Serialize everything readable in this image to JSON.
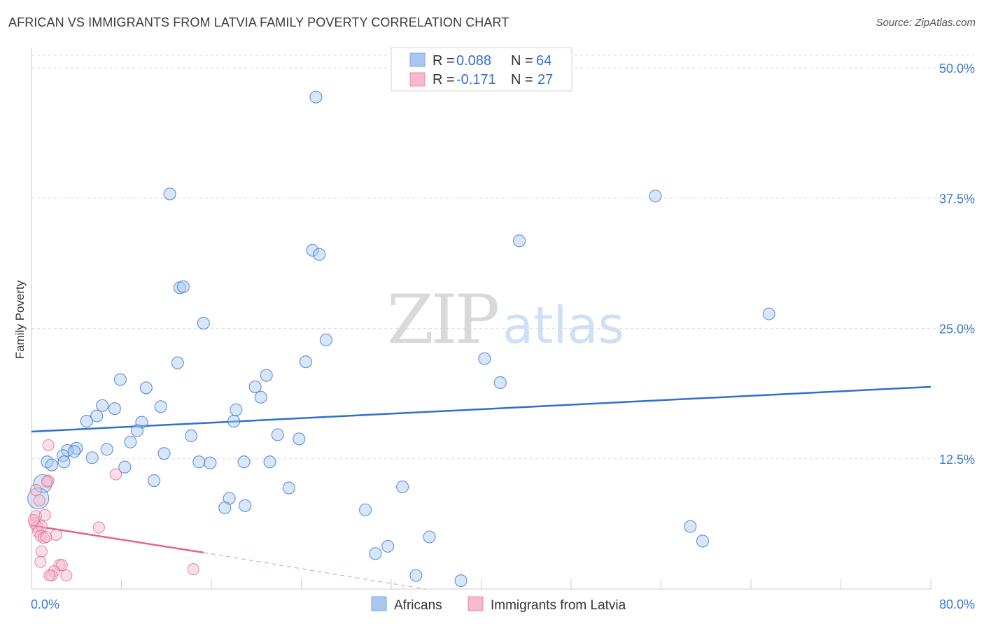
{
  "title": "AFRICAN VS IMMIGRANTS FROM LATVIA FAMILY POVERTY CORRELATION CHART",
  "source": "Source: ZipAtlas.com",
  "watermark": {
    "part1": "ZIP",
    "part2": "atlas"
  },
  "colors": {
    "blue": "#2f6fd0",
    "blue_fill": "#a9c8f0",
    "pink": "#e0658f",
    "pink_fill": "#f7b9cc",
    "grid": "#dddddd",
    "tick_text": "#3b7ad1"
  },
  "legend": {
    "rows": [
      {
        "r_label": "R =",
        "r_value": "0.088",
        "n_label": "N =",
        "n_value": "64"
      },
      {
        "r_label": "R =",
        "r_value": "-0.171",
        "n_label": "N =",
        "n_value": "27"
      }
    ]
  },
  "chart_data": {
    "type": "scatter",
    "title": "AFRICAN VS IMMIGRANTS FROM LATVIA FAMILY POVERTY CORRELATION CHART",
    "xlabel": "",
    "ylabel": "Family Poverty",
    "xlim": [
      0,
      80
    ],
    "ylim": [
      0,
      52
    ],
    "x_tick_labels": [
      "0.0%",
      "80.0%"
    ],
    "y_ticks": [
      12.5,
      25.0,
      37.5,
      50.0
    ],
    "y_tick_labels": [
      "12.5%",
      "25.0%",
      "37.5%",
      "50.0%"
    ],
    "legend_position": "top-center",
    "series": [
      {
        "name": "Africans",
        "color": "#2f6fd0",
        "fill": "#a9c8f0",
        "trend": {
          "x": [
            0,
            80
          ],
          "y": [
            15.1,
            19.4
          ],
          "style": "solid"
        },
        "points": [
          [
            25.3,
            47.2
          ],
          [
            12.3,
            37.9
          ],
          [
            55.5,
            37.7
          ],
          [
            43.4,
            33.4
          ],
          [
            25.0,
            32.5
          ],
          [
            25.6,
            32.1
          ],
          [
            13.2,
            28.9
          ],
          [
            13.5,
            29.0
          ],
          [
            65.6,
            26.4
          ],
          [
            15.3,
            25.5
          ],
          [
            26.2,
            23.9
          ],
          [
            40.3,
            22.1
          ],
          [
            24.4,
            21.8
          ],
          [
            13.0,
            21.7
          ],
          [
            20.9,
            20.5
          ],
          [
            41.7,
            19.8
          ],
          [
            7.9,
            20.1
          ],
          [
            10.2,
            19.3
          ],
          [
            19.9,
            19.4
          ],
          [
            20.4,
            18.4
          ],
          [
            6.3,
            17.6
          ],
          [
            7.4,
            17.3
          ],
          [
            11.5,
            17.5
          ],
          [
            18.2,
            17.2
          ],
          [
            5.8,
            16.6
          ],
          [
            4.9,
            16.1
          ],
          [
            9.8,
            16.0
          ],
          [
            18.0,
            16.1
          ],
          [
            9.4,
            15.2
          ],
          [
            14.2,
            14.7
          ],
          [
            21.9,
            14.8
          ],
          [
            23.8,
            14.4
          ],
          [
            8.8,
            14.1
          ],
          [
            4.0,
            13.5
          ],
          [
            3.2,
            13.3
          ],
          [
            3.8,
            13.2
          ],
          [
            6.7,
            13.4
          ],
          [
            11.8,
            13.0
          ],
          [
            2.8,
            12.8
          ],
          [
            5.4,
            12.6
          ],
          [
            1.4,
            12.2
          ],
          [
            2.9,
            12.2
          ],
          [
            1.8,
            11.9
          ],
          [
            14.9,
            12.2
          ],
          [
            15.9,
            12.1
          ],
          [
            18.9,
            12.2
          ],
          [
            21.2,
            12.2
          ],
          [
            8.3,
            11.7
          ],
          [
            1.0,
            10.1
          ],
          [
            10.9,
            10.4
          ],
          [
            22.9,
            9.7
          ],
          [
            33.0,
            9.8
          ],
          [
            0.6,
            8.7
          ],
          [
            17.6,
            8.7
          ],
          [
            17.2,
            7.8
          ],
          [
            19.0,
            8.0
          ],
          [
            29.7,
            7.6
          ],
          [
            58.6,
            6.0
          ],
          [
            35.4,
            5.0
          ],
          [
            59.7,
            4.6
          ],
          [
            31.7,
            4.1
          ],
          [
            30.6,
            3.4
          ],
          [
            34.2,
            1.3
          ],
          [
            38.2,
            0.8
          ]
        ],
        "point_sizes_note": "most points regular size; two points near the origin drawn larger"
      },
      {
        "name": "Immigrants from Latvia",
        "color": "#e0658f",
        "fill": "#f7b9cc",
        "trend": {
          "x": [
            0,
            15.3
          ],
          "y": [
            6.1,
            3.5
          ],
          "style": "solid",
          "extension": {
            "x": [
              15.3,
              35.0
            ],
            "y": [
              3.5,
              0.0
            ],
            "style": "dashed"
          }
        },
        "points": [
          [
            1.5,
            13.8
          ],
          [
            7.5,
            11.0
          ],
          [
            1.5,
            10.4
          ],
          [
            1.4,
            10.3
          ],
          [
            0.4,
            9.5
          ],
          [
            0.7,
            8.5
          ],
          [
            0.4,
            7.0
          ],
          [
            1.2,
            7.1
          ],
          [
            0.3,
            6.3
          ],
          [
            0.5,
            6.0
          ],
          [
            0.9,
            6.0
          ],
          [
            6.0,
            5.9
          ],
          [
            0.6,
            5.5
          ],
          [
            2.2,
            5.2
          ],
          [
            0.8,
            5.1
          ],
          [
            1.1,
            4.9
          ],
          [
            1.3,
            5.0
          ],
          [
            0.9,
            3.6
          ],
          [
            0.8,
            2.6
          ],
          [
            2.5,
            2.3
          ],
          [
            2.7,
            2.3
          ],
          [
            2.0,
            1.7
          ],
          [
            1.8,
            1.3
          ],
          [
            1.6,
            1.3
          ],
          [
            3.1,
            1.3
          ],
          [
            14.4,
            1.9
          ],
          [
            0.2,
            6.6
          ]
        ]
      }
    ]
  }
}
